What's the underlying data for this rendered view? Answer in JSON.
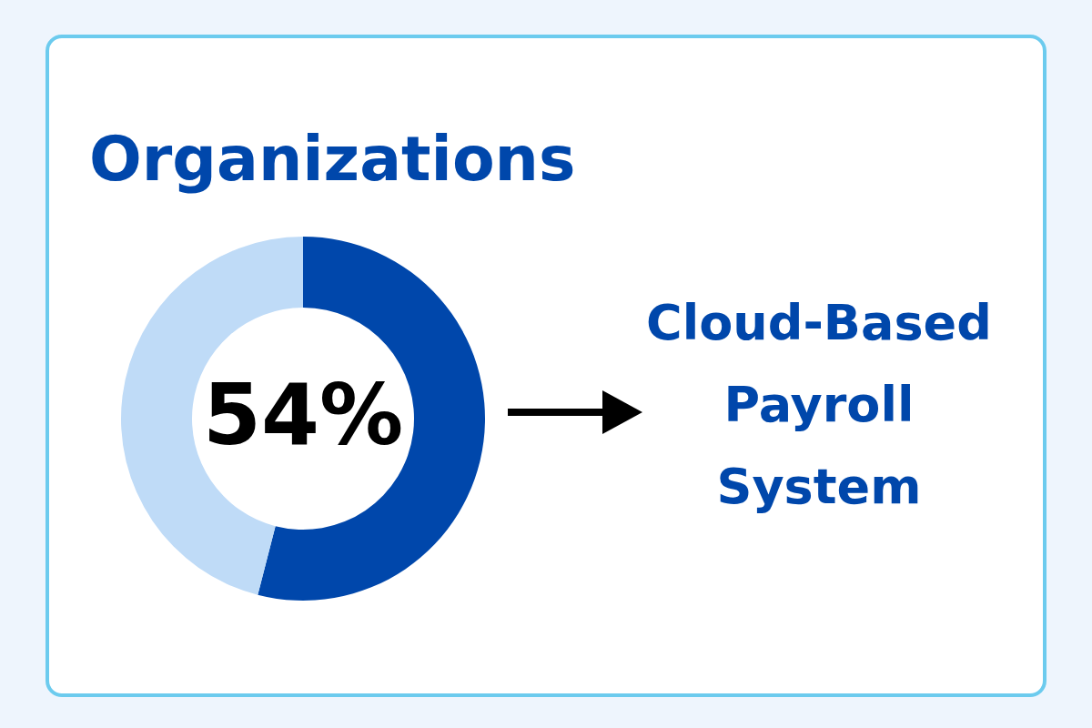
{
  "chart_data": {
    "type": "donut",
    "title": "Organizations",
    "categories": [
      null,
      null
    ],
    "values": [
      54,
      46
    ],
    "colors": [
      "#0047ab",
      "#bfdbf7"
    ],
    "value_labels": [
      "54%",
      null
    ],
    "annotations": [
      "Cloud-Based Payroll System"
    ]
  }
}
